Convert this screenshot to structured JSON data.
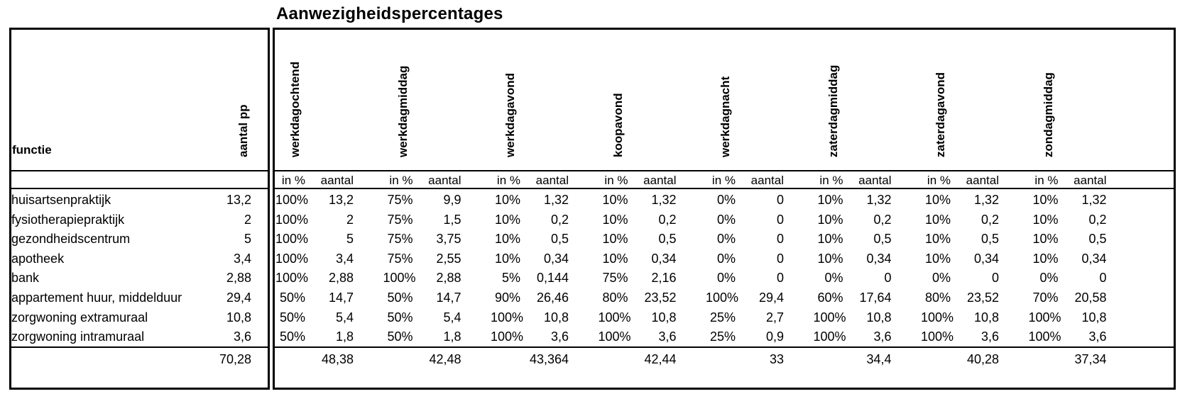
{
  "title": "Aanwezigheidspercentages",
  "headers": {
    "functie": "functie",
    "aantal_pp": "aantal pp",
    "in_pct": "in %",
    "aantal": "aantal",
    "periods": [
      "werkdagochtend",
      "werkdagmiddag",
      "werkdagavond",
      "koopavond",
      "werkdagnacht",
      "zaterdagmiddag",
      "zaterdagavond",
      "zondagmiddag"
    ]
  },
  "rows": [
    {
      "functie": "huisartsenpraktijk",
      "pp": "13,2",
      "cells": [
        "100%",
        "13,2",
        "75%",
        "9,9",
        "10%",
        "1,32",
        "10%",
        "1,32",
        "0%",
        "0",
        "10%",
        "1,32",
        "10%",
        "1,32",
        "10%",
        "1,32"
      ]
    },
    {
      "functie": "fysiotherapiepraktijk",
      "pp": "2",
      "cells": [
        "100%",
        "2",
        "75%",
        "1,5",
        "10%",
        "0,2",
        "10%",
        "0,2",
        "0%",
        "0",
        "10%",
        "0,2",
        "10%",
        "0,2",
        "10%",
        "0,2"
      ]
    },
    {
      "functie": "gezondheidscentrum",
      "pp": "5",
      "cells": [
        "100%",
        "5",
        "75%",
        "3,75",
        "10%",
        "0,5",
        "10%",
        "0,5",
        "0%",
        "0",
        "10%",
        "0,5",
        "10%",
        "0,5",
        "10%",
        "0,5"
      ]
    },
    {
      "functie": "apotheek",
      "pp": "3,4",
      "cells": [
        "100%",
        "3,4",
        "75%",
        "2,55",
        "10%",
        "0,34",
        "10%",
        "0,34",
        "0%",
        "0",
        "10%",
        "0,34",
        "10%",
        "0,34",
        "10%",
        "0,34"
      ]
    },
    {
      "functie": "bank",
      "pp": "2,88",
      "cells": [
        "100%",
        "2,88",
        "100%",
        "2,88",
        "5%",
        "0,144",
        "75%",
        "2,16",
        "0%",
        "0",
        "0%",
        "0",
        "0%",
        "0",
        "0%",
        "0"
      ]
    },
    {
      "functie": "appartement huur, middelduur",
      "pp": "29,4",
      "cells": [
        "50%",
        "14,7",
        "50%",
        "14,7",
        "90%",
        "26,46",
        "80%",
        "23,52",
        "100%",
        "29,4",
        "60%",
        "17,64",
        "80%",
        "23,52",
        "70%",
        "20,58"
      ]
    },
    {
      "functie": "zorgwoning extramuraal",
      "pp": "10,8",
      "cells": [
        "50%",
        "5,4",
        "50%",
        "5,4",
        "100%",
        "10,8",
        "100%",
        "10,8",
        "25%",
        "2,7",
        "100%",
        "10,8",
        "100%",
        "10,8",
        "100%",
        "10,8"
      ]
    },
    {
      "functie": "zorgwoning intramuraal",
      "pp": "3,6",
      "cells": [
        "50%",
        "1,8",
        "50%",
        "1,8",
        "100%",
        "3,6",
        "100%",
        "3,6",
        "25%",
        "0,9",
        "100%",
        "3,6",
        "100%",
        "3,6",
        "100%",
        "3,6"
      ]
    }
  ],
  "totals": {
    "pp": "70,28",
    "aantal": [
      "48,38",
      "42,48",
      "43,364",
      "42,44",
      "33",
      "34,4",
      "40,28",
      "37,34"
    ]
  }
}
